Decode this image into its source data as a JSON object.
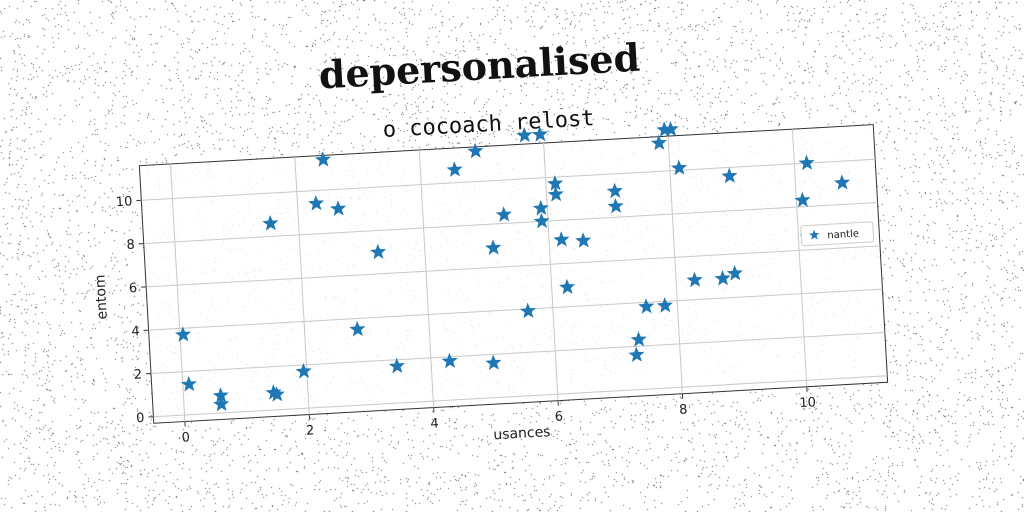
{
  "chart_data": {
    "type": "scatter",
    "title": "depersonalised",
    "subtitle": "o cocoach relost",
    "xlabel": "usances",
    "ylabel": "entom",
    "xlim": [
      -0.5,
      11.3
    ],
    "ylim": [
      -0.3,
      11.6
    ],
    "xticks": [
      "0",
      "2",
      "4",
      "6",
      "8",
      "10"
    ],
    "yticks": [
      "0",
      "2",
      "4",
      "6",
      "8",
      "10"
    ],
    "grid": true,
    "legend_position": "center-right",
    "marker": "star",
    "series": [
      {
        "name": "nantle",
        "color": "#1f77b4",
        "points": [
          [
            0.05,
            3.7
          ],
          [
            0.1,
            1.4
          ],
          [
            0.6,
            0.8
          ],
          [
            0.6,
            0.4
          ],
          [
            1.45,
            0.8
          ],
          [
            1.5,
            0.7
          ],
          [
            1.55,
            8.6
          ],
          [
            1.95,
            1.7
          ],
          [
            2.3,
            9.4
          ],
          [
            2.45,
            11.4
          ],
          [
            2.65,
            9.1
          ],
          [
            2.85,
            3.5
          ],
          [
            3.25,
            7.0
          ],
          [
            3.45,
            1.7
          ],
          [
            4.3,
            1.8
          ],
          [
            4.55,
            10.6
          ],
          [
            4.9,
            11.4
          ],
          [
            5.0,
            1.6
          ],
          [
            5.1,
            6.9
          ],
          [
            5.3,
            8.4
          ],
          [
            5.6,
            3.9
          ],
          [
            5.7,
            12.0
          ],
          [
            5.9,
            8.6
          ],
          [
            5.9,
            8.0
          ],
          [
            5.95,
            12.0
          ],
          [
            6.15,
            9.2
          ],
          [
            6.15,
            9.7
          ],
          [
            6.2,
            7.1
          ],
          [
            6.25,
            4.9
          ],
          [
            6.55,
            7.0
          ],
          [
            7.1,
            9.2
          ],
          [
            7.1,
            8.5
          ],
          [
            7.3,
            1.6
          ],
          [
            7.35,
            2.3
          ],
          [
            7.5,
            3.8
          ],
          [
            7.8,
            3.8
          ],
          [
            7.85,
            11.3
          ],
          [
            7.95,
            11.9
          ],
          [
            8.05,
            11.9
          ],
          [
            8.15,
            10.1
          ],
          [
            8.3,
            4.9
          ],
          [
            8.75,
            4.9
          ],
          [
            8.95,
            5.1
          ],
          [
            8.95,
            9.6
          ],
          [
            10.1,
            8.3
          ],
          [
            10.15,
            6.6
          ],
          [
            10.2,
            10.0
          ],
          [
            10.75,
            9.0
          ]
        ]
      }
    ]
  }
}
